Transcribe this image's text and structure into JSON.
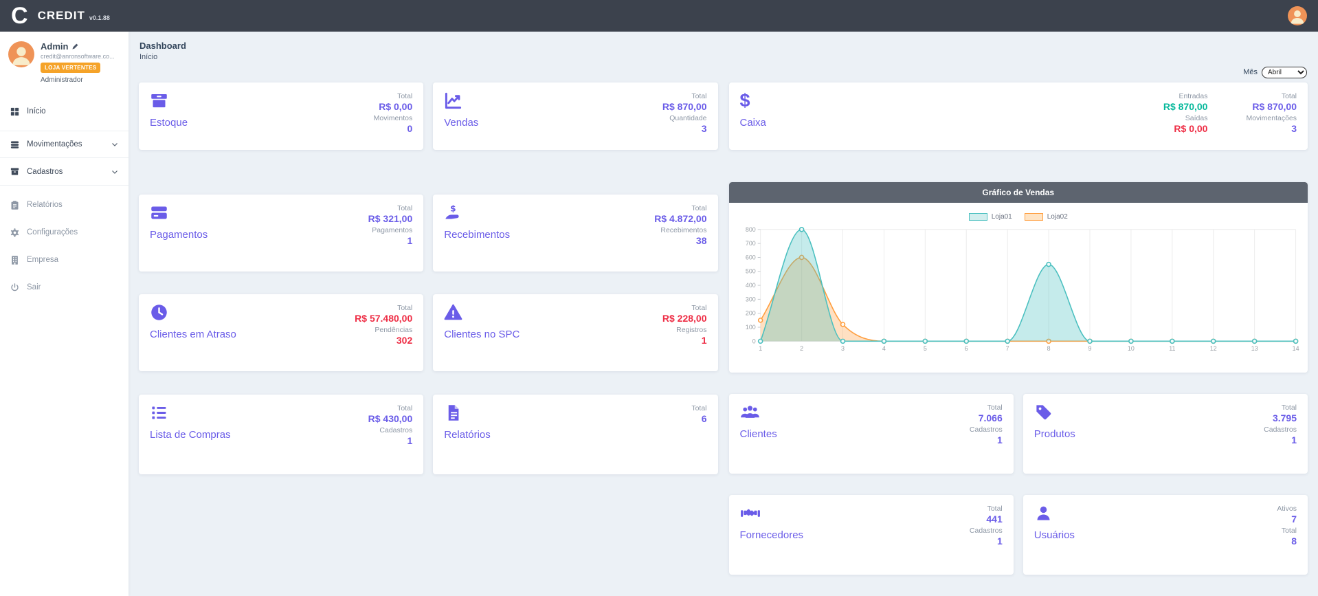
{
  "navbar": {
    "logo_letter": "C",
    "brand": "CREDIT",
    "version": "v0.1.88"
  },
  "sidebar": {
    "user": {
      "name": "Admin",
      "email": "credit@anronsoftware.co...",
      "badge": "LOJA VERTENTES",
      "role": "Administrador"
    },
    "items": [
      {
        "label": "Início",
        "icon": "grid-icon"
      },
      {
        "label": "Movimentações",
        "icon": "stack-icon"
      },
      {
        "label": "Cadastros",
        "icon": "archive-icon"
      },
      {
        "label": "Relatórios",
        "icon": "clipboard-icon"
      },
      {
        "label": "Configurações",
        "icon": "gear-icon"
      },
      {
        "label": "Empresa",
        "icon": "building-icon"
      },
      {
        "label": "Sair",
        "icon": "power-icon"
      }
    ]
  },
  "header": {
    "title": "Dashboard",
    "breadcrumb": "Início",
    "month_label": "Mês",
    "month_value": "Abril"
  },
  "cards": {
    "estoque": {
      "title": "Estoque",
      "stats": [
        {
          "label": "Total",
          "value": "R$ 0,00"
        },
        {
          "label": "Movimentos",
          "value": "0"
        }
      ]
    },
    "vendas": {
      "title": "Vendas",
      "stats": [
        {
          "label": "Total",
          "value": "R$ 870,00"
        },
        {
          "label": "Quantidade",
          "value": "3"
        }
      ]
    },
    "caixa": {
      "title": "Caixa",
      "stats": [
        {
          "label": "Entradas",
          "value": "R$ 870,00"
        },
        {
          "label": "Saídas",
          "value": "R$ 0,00"
        },
        {
          "label": "Total",
          "value": "R$ 870,00"
        },
        {
          "label": "Movimentações",
          "value": "3"
        }
      ]
    },
    "pagamentos": {
      "title": "Pagamentos",
      "stats": [
        {
          "label": "Total",
          "value": "R$ 321,00"
        },
        {
          "label": "Pagamentos",
          "value": "1"
        }
      ]
    },
    "recebimentos": {
      "title": "Recebimentos",
      "stats": [
        {
          "label": "Total",
          "value": "R$ 4.872,00"
        },
        {
          "label": "Recebimentos",
          "value": "38"
        }
      ]
    },
    "clientes_atraso": {
      "title": "Clientes em Atraso",
      "stats": [
        {
          "label": "Total",
          "value": "R$ 57.480,00"
        },
        {
          "label": "Pendências",
          "value": "302"
        }
      ]
    },
    "clientes_spc": {
      "title": "Clientes no SPC",
      "stats": [
        {
          "label": "Total",
          "value": "R$ 228,00"
        },
        {
          "label": "Registros",
          "value": "1"
        }
      ]
    },
    "lista_compras": {
      "title": "Lista de Compras",
      "stats": [
        {
          "label": "Total",
          "value": "R$ 430,00"
        },
        {
          "label": "Cadastros",
          "value": "1"
        }
      ]
    },
    "relatorios": {
      "title": "Relatórios",
      "stats": [
        {
          "label": "Total",
          "value": "6"
        }
      ]
    },
    "clientes": {
      "title": "Clientes",
      "stats": [
        {
          "label": "Total",
          "value": "7.066"
        },
        {
          "label": "Cadastros",
          "value": "1"
        }
      ]
    },
    "produtos": {
      "title": "Produtos",
      "stats": [
        {
          "label": "Total",
          "value": "3.795"
        },
        {
          "label": "Cadastros",
          "value": "1"
        }
      ]
    },
    "fornecedores": {
      "title": "Fornecedores",
      "stats": [
        {
          "label": "Total",
          "value": "441"
        },
        {
          "label": "Cadastros",
          "value": "1"
        }
      ]
    },
    "usuarios": {
      "title": "Usuários",
      "stats": [
        {
          "label": "Ativos",
          "value": "7"
        },
        {
          "label": "Total",
          "value": "8"
        }
      ]
    }
  },
  "colors": {
    "accent_purple": "#6a5ce8",
    "positive_green": "#06b89b",
    "negative_red": "#ee2d45",
    "badge_orange": "#f5a329",
    "navbar_dark": "#3c424d",
    "chart_header_gray": "#5d646f",
    "chart_teal": "#4bc0c0",
    "chart_orange": "#ff9f40"
  },
  "chart_data": {
    "type": "area",
    "title": "Gráfico de Vendas",
    "x": [
      1,
      2,
      3,
      4,
      5,
      6,
      7,
      8,
      9,
      10,
      11,
      12,
      13,
      14
    ],
    "series": [
      {
        "name": "Loja01",
        "color": "#4bc0c0",
        "values": [
          0,
          800,
          0,
          0,
          0,
          0,
          0,
          550,
          0,
          0,
          0,
          0,
          0,
          0
        ]
      },
      {
        "name": "Loja02",
        "color": "#ff9f40",
        "values": [
          150,
          600,
          120,
          0,
          0,
          0,
          0,
          0,
          0,
          0,
          0,
          0,
          0,
          0
        ]
      }
    ],
    "ylim": [
      0,
      800
    ],
    "ytick_step": 100,
    "legend_position": "top",
    "grid": "vertical",
    "smooth": true
  }
}
